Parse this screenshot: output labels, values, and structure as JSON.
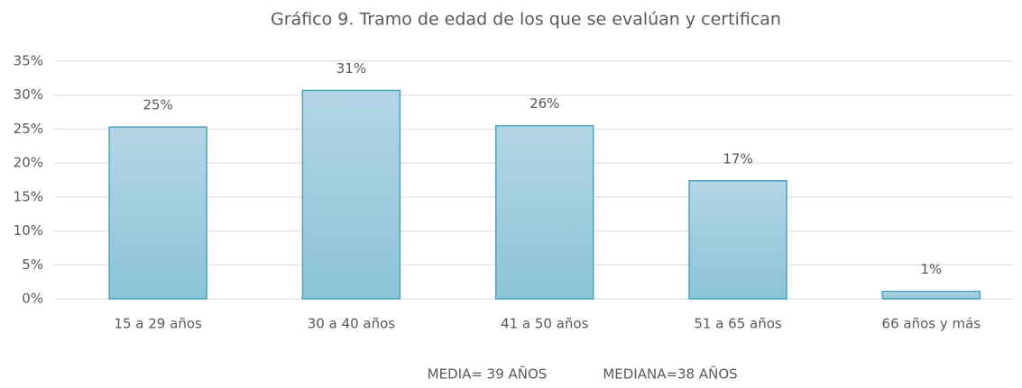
{
  "chart_data": {
    "type": "bar",
    "title": "Gráfico 9. Tramo de edad de los que se evalúan y certifican",
    "categories": [
      "15 a 29 años",
      "30 a 40 años",
      "41 a 50 años",
      "51 a 65 años",
      "66 años y más"
    ],
    "values": [
      25.3,
      30.7,
      25.5,
      17.4,
      1.1
    ],
    "value_labels": [
      "25%",
      "31%",
      "26%",
      "17%",
      "1%"
    ],
    "color": "#9ccbdd",
    "ylim": [
      0,
      35
    ],
    "yticks": [
      {
        "value": 0,
        "label": "0%"
      },
      {
        "value": 5,
        "label": "5%"
      },
      {
        "value": 10,
        "label": "10%"
      },
      {
        "value": 15,
        "label": "15%"
      },
      {
        "value": 20,
        "label": "20%"
      },
      {
        "value": 25,
        "label": "25%"
      },
      {
        "value": 30,
        "label": "30%"
      },
      {
        "value": 35,
        "label": "35%"
      }
    ],
    "grid": true,
    "annotations": [
      "MEDIA= 39 AÑOS",
      "MEDIANA=38 AÑOS"
    ]
  }
}
